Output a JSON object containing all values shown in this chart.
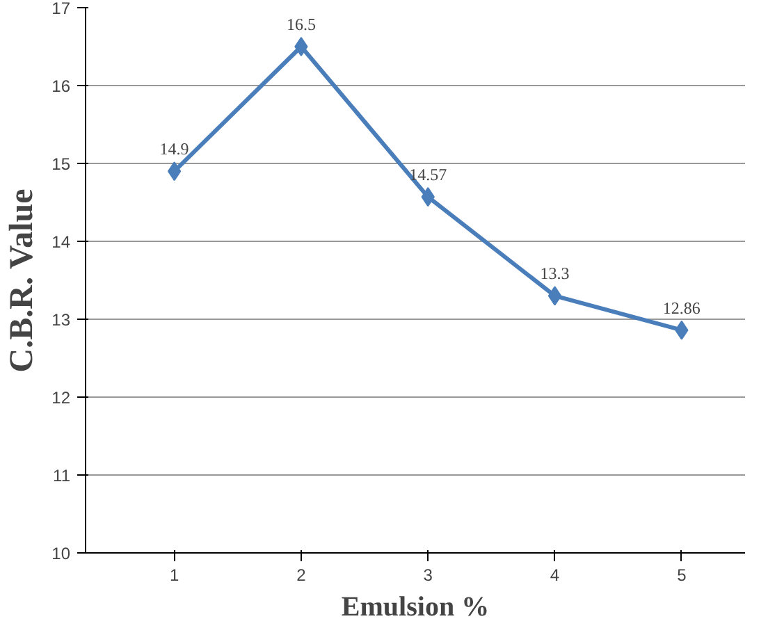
{
  "chart_data": {
    "type": "line",
    "xlabel": "Emulsion %",
    "ylabel": "C.B.R. Value",
    "categories": [
      "1",
      "2",
      "3",
      "4",
      "5"
    ],
    "series": [
      {
        "color": "#4a7ebb",
        "values": [
          14.9,
          16.5,
          14.57,
          13.3,
          12.86
        ]
      }
    ],
    "ylim": [
      10,
      17
    ],
    "yticks": [
      10,
      11,
      12,
      13,
      14,
      15,
      16,
      17
    ],
    "grid": "y",
    "marker": "diamond",
    "line_style": "solid",
    "data_labels": true
  }
}
